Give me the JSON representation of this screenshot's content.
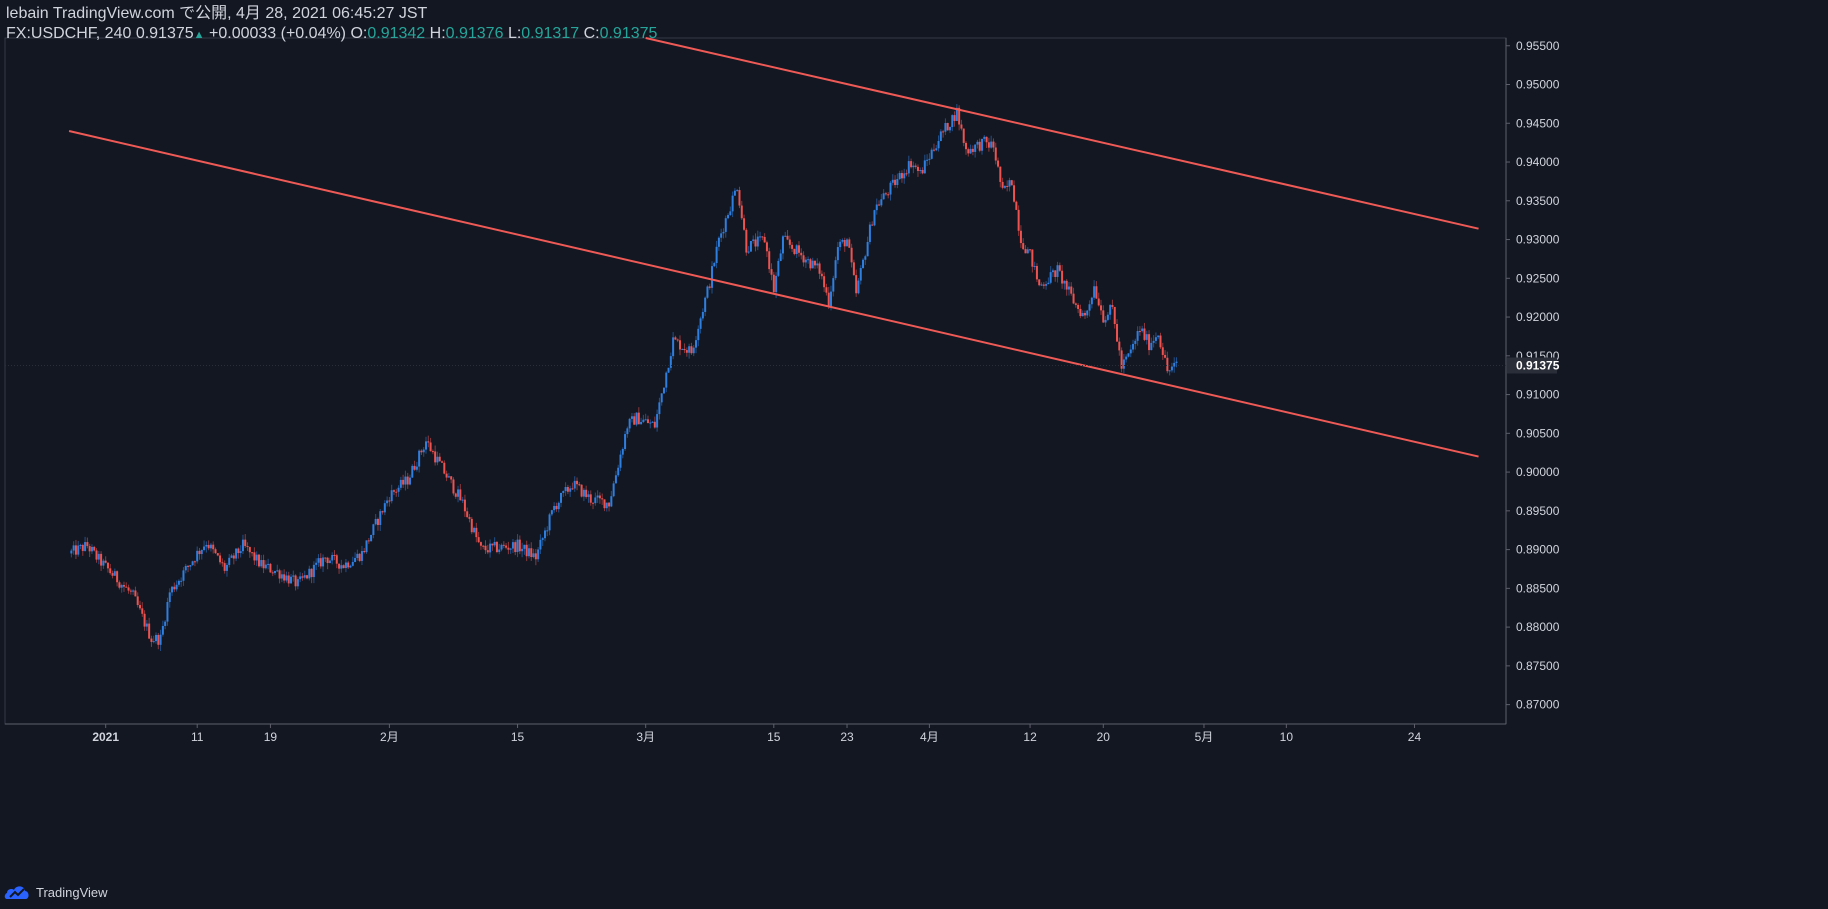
{
  "header": {
    "publisher": "lebain TradingView.com で公開, 4月 28, 2021 06:45:27 JST",
    "symbol_line": "FX:USDCHF, 240 0.91375",
    "change_arrow": "▲",
    "change": "+0.00033 (+0.04%)",
    "o_label": "O:",
    "o_value": "0.91342",
    "h_label": "H:",
    "h_value": "0.91376",
    "l_label": "L:",
    "l_value": "0.91317",
    "c_label": "C:",
    "c_value": "0.91375"
  },
  "footer": {
    "brand": "TradingView"
  },
  "colors": {
    "background": "#131722",
    "up": "#2f7fe0",
    "down": "#ef5350",
    "trendline": "#f05a56",
    "axis_text": "#d1d4dc",
    "last_price_badge": "#2a2e39"
  },
  "chart_data": {
    "type": "candlestick",
    "symbol": "FX:USDCHF",
    "interval": "240",
    "ylim": [
      0.8675,
      0.956
    ],
    "y_ticks": [
      "0.87000",
      "0.87500",
      "0.88000",
      "0.88500",
      "0.89000",
      "0.89500",
      "0.90000",
      "0.90500",
      "0.91000",
      "0.91500",
      "0.92000",
      "0.92500",
      "0.93000",
      "0.93500",
      "0.94000",
      "0.94500",
      "0.95000",
      "0.95500"
    ],
    "x_ticks": [
      "2021",
      "11",
      "19",
      "2月",
      "15",
      "3月",
      "15",
      "23",
      "4月",
      "12",
      "20",
      "5月",
      "10",
      "24"
    ],
    "last_price": "0.91375",
    "path_points": [
      [
        "2020-12-28",
        0.8895
      ],
      [
        "2020-12-30",
        0.8905
      ],
      [
        "2020-12-31",
        0.889
      ],
      [
        "2021-01-04",
        0.884
      ],
      [
        "2021-01-06",
        0.8785
      ],
      [
        "2021-01-07",
        0.8785
      ],
      [
        "2021-01-08",
        0.8845
      ],
      [
        "2021-01-11",
        0.8895
      ],
      [
        "2021-01-12",
        0.891
      ],
      [
        "2021-01-14",
        0.8875
      ],
      [
        "2021-01-16",
        0.8905
      ],
      [
        "2021-01-18",
        0.888
      ],
      [
        "2021-01-20",
        0.887
      ],
      [
        "2021-01-22",
        0.8855
      ],
      [
        "2021-01-25",
        0.889
      ],
      [
        "2021-01-27",
        0.888
      ],
      [
        "2021-01-29",
        0.8895
      ],
      [
        "2021-02-01",
        0.897
      ],
      [
        "2021-02-03",
        0.899
      ],
      [
        "2021-02-05",
        0.904
      ],
      [
        "2021-02-07",
        0.9
      ],
      [
        "2021-02-09",
        0.896
      ],
      [
        "2021-02-11",
        0.89
      ],
      [
        "2021-02-15",
        0.8905
      ],
      [
        "2021-02-17",
        0.889
      ],
      [
        "2021-02-19",
        0.8955
      ],
      [
        "2021-02-21",
        0.8985
      ],
      [
        "2021-02-23",
        0.8965
      ],
      [
        "2021-02-25",
        0.896
      ],
      [
        "2021-02-27",
        0.906
      ],
      [
        "2021-02-28",
        0.907
      ],
      [
        "2021-03-02",
        0.906
      ],
      [
        "2021-03-04",
        0.917
      ],
      [
        "2021-03-06",
        0.9155
      ],
      [
        "2021-03-08",
        0.9245
      ],
      [
        "2021-03-09",
        0.93
      ],
      [
        "2021-03-11",
        0.937
      ],
      [
        "2021-03-12",
        0.929
      ],
      [
        "2021-03-14",
        0.93
      ],
      [
        "2021-03-15",
        0.9235
      ],
      [
        "2021-03-16",
        0.93
      ],
      [
        "2021-03-18",
        0.928
      ],
      [
        "2021-03-20",
        0.926
      ],
      [
        "2021-03-21",
        0.922
      ],
      [
        "2021-03-22",
        0.929
      ],
      [
        "2021-03-23",
        0.93
      ],
      [
        "2021-03-24",
        0.923
      ],
      [
        "2021-03-26",
        0.934
      ],
      [
        "2021-03-28",
        0.937
      ],
      [
        "2021-03-30",
        0.94
      ],
      [
        "2021-03-31",
        0.9385
      ],
      [
        "2021-04-02",
        0.943
      ],
      [
        "2021-04-04",
        0.9465
      ],
      [
        "2021-04-05",
        0.9415
      ],
      [
        "2021-04-07",
        0.9425
      ],
      [
        "2021-04-08",
        0.942
      ],
      [
        "2021-04-09",
        0.936
      ],
      [
        "2021-04-10",
        0.9375
      ],
      [
        "2021-04-11",
        0.93
      ],
      [
        "2021-04-12",
        0.928
      ],
      [
        "2021-04-13",
        0.924
      ],
      [
        "2021-04-15",
        0.926
      ],
      [
        "2021-04-17",
        0.9215
      ],
      [
        "2021-04-18",
        0.92
      ],
      [
        "2021-04-19",
        0.924
      ],
      [
        "2021-04-20",
        0.92
      ],
      [
        "2021-04-21",
        0.921
      ],
      [
        "2021-04-22",
        0.9135
      ],
      [
        "2021-04-23",
        0.9155
      ],
      [
        "2021-04-24",
        0.9185
      ],
      [
        "2021-04-25",
        0.9165
      ],
      [
        "2021-04-26",
        0.918
      ],
      [
        "2021-04-27",
        0.913
      ],
      [
        "2021-04-28",
        0.91375
      ]
    ],
    "trendlines": [
      {
        "name": "upper",
        "points": [
          [
            "2021-03-01",
            0.956
          ],
          [
            "2021-05-31",
            0.9314
          ]
        ]
      },
      {
        "name": "lower",
        "points": [
          [
            "2020-12-28",
            0.944
          ],
          [
            "2021-05-31",
            0.902
          ]
        ]
      }
    ]
  }
}
